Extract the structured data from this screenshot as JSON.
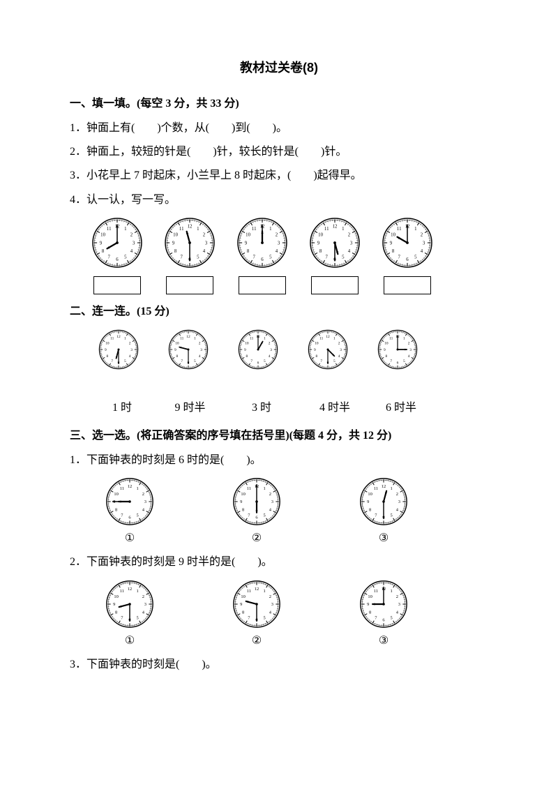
{
  "title": "教材过关卷(8)",
  "section1": {
    "heading": "一、填一填。(每空 3 分，共 33 分)",
    "q1": "1．钟面上有(　　)个数，从(　　)到(　　)。",
    "q2": "2．钟面上，较短的针是(　　)针，较长的针是(　　)针。",
    "q3": "3．小花早上 7 时起床，小兰早上 8 时起床，(　　)起得早。",
    "q4": "4．认一认，写一写。",
    "clocks": [
      {
        "h": 8,
        "m": 0
      },
      {
        "h": 11,
        "m": 30
      },
      {
        "h": 12,
        "m": 0
      },
      {
        "h": 5,
        "m": 30
      },
      {
        "h": 10,
        "m": 0
      }
    ]
  },
  "section2": {
    "heading": "二、连一连。(15 分)",
    "clocks": [
      {
        "h": 6,
        "m": 30
      },
      {
        "h": 9,
        "m": 30
      },
      {
        "h": 1,
        "m": 0
      },
      {
        "h": 4,
        "m": 30
      },
      {
        "h": 3,
        "m": 0
      }
    ],
    "labels": [
      "1 时",
      "9 时半",
      "3 时",
      "4 时半",
      "6 时半"
    ],
    "label_widths": [
      90,
      105,
      100,
      110,
      80
    ]
  },
  "section3": {
    "heading": "三、选一选。(将正确答案的序号填在括号里)(每题 4 分，共 12 分)",
    "q1": "1．下面钟表的时刻是 6 时的是(　　)。",
    "q1_clocks": [
      {
        "h": 9,
        "m": 45,
        "hr_override": 270
      },
      {
        "h": 6,
        "m": 0
      },
      {
        "h": 12,
        "m": 30
      }
    ],
    "q2": "2．下面钟表的时刻是 9 时半的是(　　)。",
    "q2_clocks": [
      {
        "h": 8,
        "m": 30
      },
      {
        "h": 9,
        "m": 30
      },
      {
        "h": 9,
        "m": 0
      }
    ],
    "q3": "3．下面钟表的时刻是(　　)。",
    "opt_labels": [
      "①",
      "②",
      "③"
    ]
  },
  "clock_style": {
    "stroke": "#000000",
    "face_bg": "#ffffff",
    "stroke_width": 1.5,
    "tick_major": 3,
    "tick_minor": 1.2
  }
}
